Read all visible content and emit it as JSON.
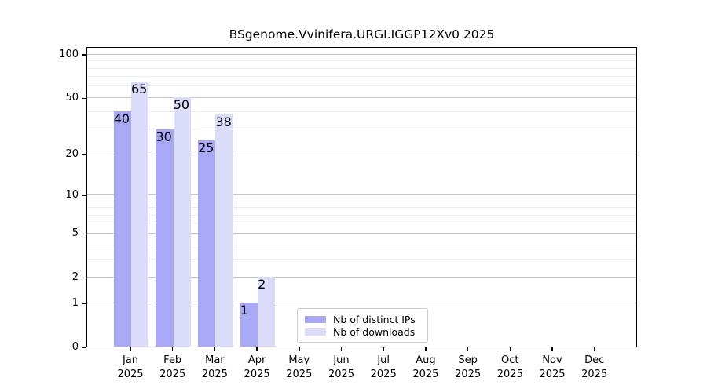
{
  "title": "BSgenome.Vvinifera.URGI.IGGP12Xv0 2025",
  "legend": {
    "items": [
      {
        "label": "Nb of distinct IPs",
        "color": "#a8a8f7"
      },
      {
        "label": "Nb of downloads",
        "color": "#dbdbfa"
      }
    ]
  },
  "chart_data": {
    "type": "bar",
    "title": "BSgenome.Vvinifera.URGI.IGGP12Xv0 2025",
    "scale": "log10(value+1)",
    "grid": true,
    "legend_position": "inside-bottom-center",
    "categories": [
      {
        "month": "Jan",
        "year": "2025"
      },
      {
        "month": "Feb",
        "year": "2025"
      },
      {
        "month": "Mar",
        "year": "2025"
      },
      {
        "month": "Apr",
        "year": "2025"
      },
      {
        "month": "May",
        "year": "2025"
      },
      {
        "month": "Jun",
        "year": "2025"
      },
      {
        "month": "Jul",
        "year": "2025"
      },
      {
        "month": "Aug",
        "year": "2025"
      },
      {
        "month": "Sep",
        "year": "2025"
      },
      {
        "month": "Oct",
        "year": "2025"
      },
      {
        "month": "Nov",
        "year": "2025"
      },
      {
        "month": "Dec",
        "year": "2025"
      }
    ],
    "series": [
      {
        "name": "Nb of distinct IPs",
        "color": "#a8a8f7",
        "values": [
          40,
          30,
          25,
          1,
          0,
          0,
          0,
          0,
          0,
          0,
          0,
          0
        ]
      },
      {
        "name": "Nb of downloads",
        "color": "#dbdbfa",
        "values": [
          65,
          50,
          38,
          2,
          0,
          0,
          0,
          0,
          0,
          0,
          0,
          0
        ]
      }
    ],
    "y_ticks": [
      0,
      1,
      2,
      5,
      10,
      20,
      50,
      100
    ],
    "y_minor_gridlines": [
      3,
      4,
      6,
      7,
      8,
      9,
      30,
      40,
      60,
      70,
      80,
      90
    ],
    "ylim": [
      0,
      100
    ]
  }
}
